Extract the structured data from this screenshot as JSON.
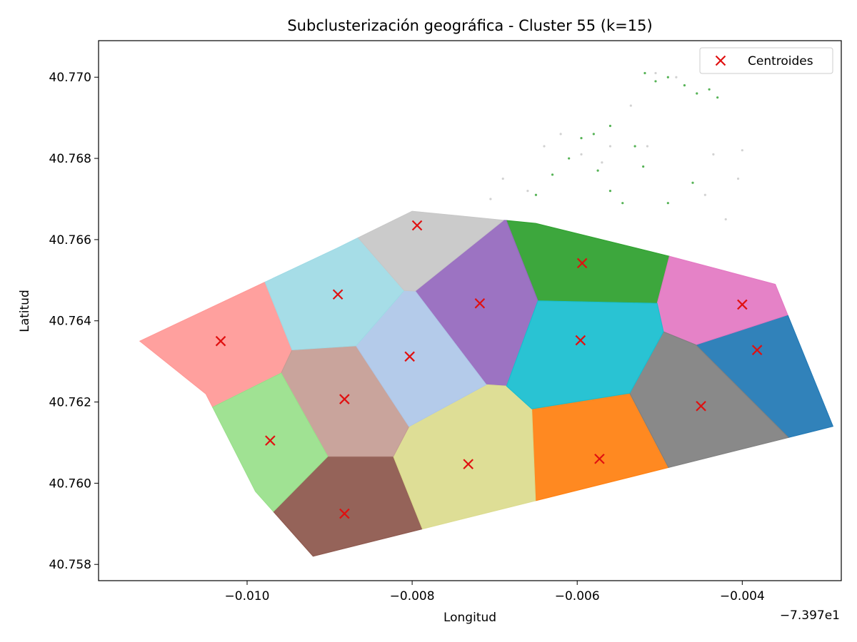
{
  "chart_data": {
    "type": "scatter",
    "title": "Subclusterización geográfica - Cluster 55 (k=15)",
    "xlabel": "Longitud",
    "ylabel": "Latitud",
    "x_offset_label": "−7.397e1",
    "xlim": [
      -0.0118,
      -0.0028
    ],
    "ylim": [
      40.7576,
      40.7709
    ],
    "x_ticks": [
      -0.01,
      -0.008,
      -0.006,
      -0.004
    ],
    "x_tick_labels": [
      "−0.010",
      "−0.008",
      "−0.006",
      "−0.004"
    ],
    "y_ticks": [
      40.758,
      40.76,
      40.762,
      40.764,
      40.766,
      40.768,
      40.77
    ],
    "y_tick_labels": [
      "40.758",
      "40.760",
      "40.762",
      "40.764",
      "40.766",
      "40.768",
      "40.770"
    ],
    "grid": false,
    "legend": {
      "placement": "top-right",
      "entries": [
        {
          "label": "Centroides",
          "marker": "x",
          "color": "#e01010"
        }
      ]
    },
    "region_polygon": [
      [
        -0.0113,
        40.7635
      ],
      [
        -0.0089,
        40.7658
      ],
      [
        -0.008,
        40.7667
      ],
      [
        -0.0065,
        40.7664
      ],
      [
        -0.0049,
        40.7656
      ],
      [
        -0.0036,
        40.7649
      ],
      [
        -0.0034,
        40.7639
      ],
      [
        -0.0029,
        40.7614
      ],
      [
        -0.0092,
        40.7582
      ],
      [
        -0.0099,
        40.7598
      ],
      [
        -0.0105,
        40.7622
      ]
    ],
    "clusters": [
      {
        "id": 0,
        "color": "#1f77b4",
        "centroid": [
          -0.00382,
          40.76328
        ]
      },
      {
        "id": 1,
        "color": "#ff7f0e",
        "centroid": [
          -0.00573,
          40.7606
        ]
      },
      {
        "id": 2,
        "color": "#2ca02c",
        "centroid": [
          -0.00594,
          40.76542
        ]
      },
      {
        "id": 3,
        "color": "#ff9896",
        "centroid": [
          -0.01032,
          40.7635
        ]
      },
      {
        "id": 4,
        "color": "#9467bd",
        "centroid": [
          -0.00718,
          40.76443
        ]
      },
      {
        "id": 5,
        "color": "#8c564b",
        "centroid": [
          -0.00882,
          40.75925
        ]
      },
      {
        "id": 6,
        "color": "#e377c2",
        "centroid": [
          -0.004,
          40.7644
        ]
      },
      {
        "id": 7,
        "color": "#7f7f7f",
        "centroid": [
          -0.0045,
          40.7619
        ]
      },
      {
        "id": 8,
        "color": "#dbdb8d",
        "centroid": [
          -0.00732,
          40.76047
        ]
      },
      {
        "id": 9,
        "color": "#17becf",
        "centroid": [
          -0.00596,
          40.76352
        ]
      },
      {
        "id": 10,
        "color": "#c49c94",
        "centroid": [
          -0.00882,
          40.76207
        ]
      },
      {
        "id": 11,
        "color": "#aec7e8",
        "centroid": [
          -0.00803,
          40.76312
        ]
      },
      {
        "id": 12,
        "color": "#98df8a",
        "centroid": [
          -0.00972,
          40.76105
        ]
      },
      {
        "id": 13,
        "color": "#9edae5",
        "centroid": [
          -0.0089,
          40.76465
        ]
      },
      {
        "id": 14,
        "color": "#c7c7c7",
        "centroid": [
          -0.00794,
          40.76635
        ]
      }
    ],
    "outlier_points": [
      {
        "cluster": 2,
        "points": [
          [
            -0.00518,
            40.7701
          ],
          [
            -0.00505,
            40.7699
          ],
          [
            -0.0049,
            40.77
          ],
          [
            -0.0047,
            40.7698
          ],
          [
            -0.00455,
            40.7696
          ],
          [
            -0.0044,
            40.7697
          ],
          [
            -0.0043,
            40.7695
          ],
          [
            -0.0056,
            40.7688
          ],
          [
            -0.0058,
            40.7686
          ],
          [
            -0.0053,
            40.7683
          ],
          [
            -0.0061,
            40.768
          ],
          [
            -0.0063,
            40.7676
          ],
          [
            -0.0056,
            40.7672
          ],
          [
            -0.0052,
            40.7678
          ],
          [
            -0.0065,
            40.7671
          ],
          [
            -0.0049,
            40.7669
          ],
          [
            -0.0046,
            40.7674
          ],
          [
            -0.00595,
            40.7685
          ],
          [
            -0.00575,
            40.7677
          ],
          [
            -0.00545,
            40.7669
          ]
        ]
      },
      {
        "cluster": 14,
        "points": [
          [
            -0.0069,
            40.7675
          ],
          [
            -0.00705,
            40.767
          ],
          [
            -0.0066,
            40.7672
          ],
          [
            -0.0064,
            40.7683
          ],
          [
            -0.0062,
            40.7686
          ],
          [
            -0.00595,
            40.7681
          ],
          [
            -0.0057,
            40.7679
          ],
          [
            -0.00535,
            40.7693
          ],
          [
            -0.00505,
            40.7701
          ],
          [
            -0.0048,
            40.77
          ],
          [
            -0.00435,
            40.7681
          ],
          [
            -0.004,
            40.7682
          ],
          [
            -0.00405,
            40.7675
          ],
          [
            -0.00445,
            40.7671
          ],
          [
            -0.00515,
            40.7683
          ],
          [
            -0.0056,
            40.7683
          ],
          [
            -0.0042,
            40.7665
          ]
        ]
      }
    ]
  }
}
